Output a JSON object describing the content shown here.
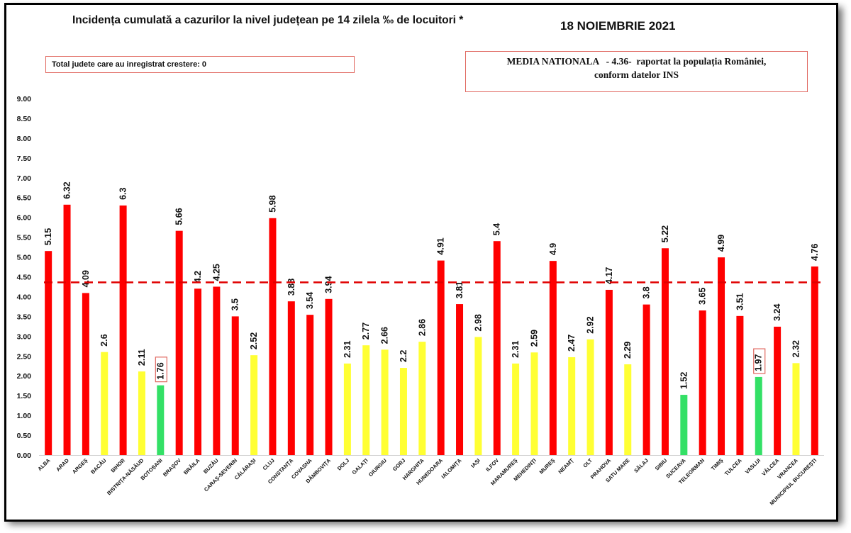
{
  "header": {
    "title": "Incidența cumulată a cazurilor la nivel județean pe 14 zilela ‰ de locuitori *",
    "date": "18 NOIEMBRIE 2021",
    "total_box": "Total judete care au inregistrat crestere: 0",
    "media_line1": "MEDIA NATIONALA   - 4.36-  raportat la populația României,",
    "media_line2": "conform datelor INS"
  },
  "colors": {
    "red": "#ff0000",
    "yellow": "#ffff33",
    "green": "#33e066",
    "reference_line": "#e00000",
    "highlight_box": "#e0675f"
  },
  "chart_data": {
    "type": "bar",
    "ylim": [
      0,
      9
    ],
    "yticks": [
      "0.00",
      "0.50",
      "1.00",
      "1.50",
      "2.00",
      "2.50",
      "3.00",
      "3.50",
      "4.00",
      "4.50",
      "5.00",
      "5.50",
      "6.00",
      "6.50",
      "7.00",
      "7.50",
      "8.00",
      "8.50",
      "9.00"
    ],
    "reference_value": 4.36,
    "categories": [
      "ALBA",
      "ARAD",
      "ARGEȘ",
      "BACĂU",
      "BIHOR",
      "BISTRIȚA-NĂSĂUD",
      "BOTOȘANI",
      "BRAȘOV",
      "BRĂILA",
      "BUZĂU",
      "CARAȘ-SEVERIN",
      "CĂLĂRAȘI",
      "CLUJ",
      "CONSTANȚA",
      "COVASNA",
      "DÂMBOVIȚA",
      "DOLJ",
      "GALAȚI",
      "GIURGIU",
      "GORJ",
      "HARGHITA",
      "HUNEDOARA",
      "IALOMIȚA",
      "IAȘI",
      "ILFOV",
      "MARAMUREȘ",
      "MEHEDINȚI",
      "MUREȘ",
      "NEAMȚ",
      "OLT",
      "PRAHOVA",
      "SATU MARE",
      "SĂLAJ",
      "SIBIU",
      "SUCEAVA",
      "TELEORMAN",
      "TIMIȘ",
      "TULCEA",
      "VASLUI",
      "VÂLCEA",
      "VRANCEA",
      "MUNICIPIUL BUCUREȘTI"
    ],
    "values": [
      5.15,
      6.32,
      4.09,
      2.6,
      6.3,
      2.11,
      1.76,
      5.66,
      4.2,
      4.25,
      3.5,
      2.52,
      5.98,
      3.88,
      3.54,
      3.94,
      2.31,
      2.77,
      2.66,
      2.2,
      2.86,
      4.91,
      3.81,
      2.98,
      5.4,
      2.31,
      2.59,
      4.9,
      2.47,
      2.92,
      4.17,
      2.29,
      3.8,
      5.22,
      1.52,
      3.65,
      4.99,
      3.51,
      1.97,
      3.24,
      2.32,
      4.76
    ],
    "value_labels": [
      "5.15",
      "6.32",
      "4.09",
      "2.6",
      "6.3",
      "2.11",
      "1.76",
      "5.66",
      "4.2",
      "4.25",
      "3.5",
      "2.52",
      "5.98",
      "3.88",
      "3.54",
      "3.94",
      "2.31",
      "2.77",
      "2.66",
      "2.2",
      "2.86",
      "4.91",
      "3.81",
      "2.98",
      "5.4",
      "2.31",
      "2.59",
      "4.9",
      "2.47",
      "2.92",
      "4.17",
      "2.29",
      "3.8",
      "5.22",
      "1.52",
      "3.65",
      "4.99",
      "3.51",
      "1.97",
      "3.24",
      "2.32",
      "4.76"
    ],
    "bar_colors": [
      "red",
      "red",
      "red",
      "yellow",
      "red",
      "yellow",
      "green",
      "red",
      "red",
      "red",
      "red",
      "yellow",
      "red",
      "red",
      "red",
      "red",
      "yellow",
      "yellow",
      "yellow",
      "yellow",
      "yellow",
      "red",
      "red",
      "yellow",
      "red",
      "yellow",
      "yellow",
      "red",
      "yellow",
      "yellow",
      "red",
      "yellow",
      "red",
      "red",
      "green",
      "red",
      "red",
      "red",
      "green",
      "red",
      "yellow",
      "red"
    ],
    "boxed_labels": [
      "BOTOȘANI",
      "VASLUI"
    ],
    "grid": false,
    "legend": "none"
  }
}
